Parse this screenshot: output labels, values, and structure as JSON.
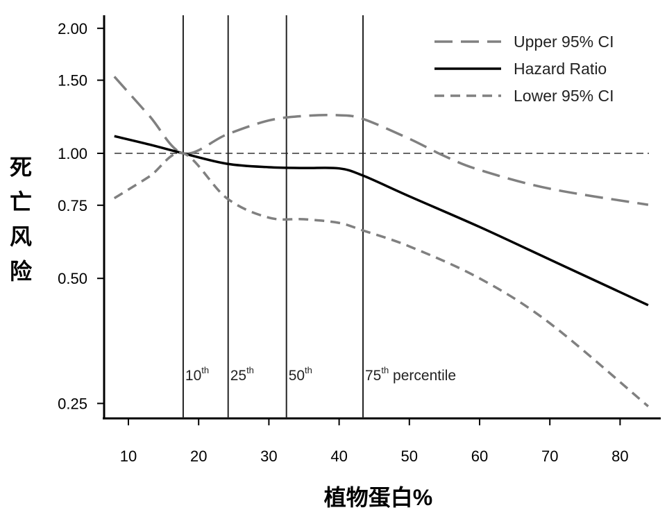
{
  "chart_data": {
    "type": "line",
    "title": "",
    "xlabel": "植物蛋白%",
    "ylabel": "死亡风险",
    "xlim": [
      7,
      86
    ],
    "ylim": [
      0.23,
      2.1
    ],
    "yscale": "log",
    "grid": false,
    "legend_placement": "top-right",
    "x_ticks": [
      10,
      20,
      30,
      40,
      50,
      60,
      70,
      80
    ],
    "y_ticks": [
      {
        "value": 0.25,
        "label": "0.25"
      },
      {
        "value": 0.5,
        "label": "0.50"
      },
      {
        "value": 0.75,
        "label": "0.75"
      },
      {
        "value": 1.0,
        "label": "1.00"
      },
      {
        "value": 1.5,
        "label": "1.50"
      },
      {
        "value": 2.0,
        "label": "2.00"
      }
    ],
    "reference_line": {
      "y": 1.0,
      "style": "dashed"
    },
    "percentile_lines": [
      {
        "x": 17.8,
        "label": "10",
        "sup": "th",
        "suffix": ""
      },
      {
        "x": 24.2,
        "label": "25",
        "sup": "th",
        "suffix": ""
      },
      {
        "x": 32.5,
        "label": "50",
        "sup": "th",
        "suffix": ""
      },
      {
        "x": 43.4,
        "label": "75",
        "sup": "th",
        "suffix": " percentile"
      }
    ],
    "series": [
      {
        "name": "Upper 95% CI",
        "style": "long-dash",
        "color": "#808080",
        "x": [
          8,
          13,
          17.8,
          24,
          30,
          35,
          40,
          43.4,
          50,
          55,
          60,
          70,
          84
        ],
        "values": [
          1.53,
          1.23,
          1.0,
          1.11,
          1.2,
          1.23,
          1.235,
          1.21,
          1.084,
          0.985,
          0.912,
          0.822,
          0.752
        ]
      },
      {
        "name": "Hazard Ratio",
        "style": "solid",
        "color": "#000000",
        "x": [
          8,
          13,
          17.8,
          24,
          30,
          35,
          40,
          43.4,
          50,
          60,
          70,
          84
        ],
        "values": [
          1.1,
          1.05,
          1.0,
          0.944,
          0.926,
          0.922,
          0.92,
          0.884,
          0.788,
          0.665,
          0.555,
          0.431
        ]
      },
      {
        "name": "Lower 95% CI",
        "style": "short-dash",
        "color": "#808080",
        "x": [
          8,
          13,
          17.8,
          24,
          30,
          35,
          40,
          43.4,
          50,
          60,
          70,
          84
        ],
        "values": [
          0.78,
          0.88,
          1.0,
          0.78,
          0.7,
          0.694,
          0.68,
          0.652,
          0.597,
          0.5,
          0.39,
          0.246
        ]
      }
    ]
  }
}
